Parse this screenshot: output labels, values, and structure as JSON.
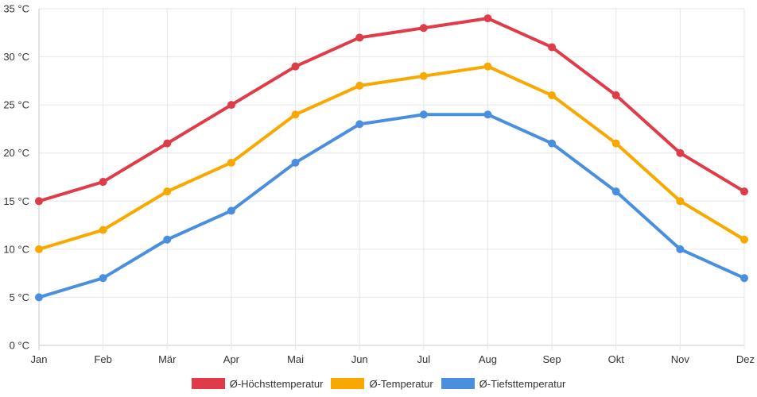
{
  "chart_data": {
    "type": "line",
    "categories": [
      "Jan",
      "Feb",
      "Mär",
      "Apr",
      "Mai",
      "Jun",
      "Jul",
      "Aug",
      "Sep",
      "Okt",
      "Nov",
      "Dez"
    ],
    "y_ticks": [
      "0 °C",
      "5 °C",
      "10 °C",
      "15 °C",
      "20 °C",
      "25 °C",
      "30 °C",
      "35 °C"
    ],
    "ylim": [
      0,
      35
    ],
    "y_step": 5,
    "grid": true,
    "legend_position": "bottom",
    "series": [
      {
        "name": "Ø-Höchsttemperatur",
        "color": "#e03b48",
        "values": [
          15,
          17,
          21,
          25,
          29,
          32,
          33,
          34,
          31,
          26,
          20,
          16
        ]
      },
      {
        "name": "Ø-Temperatur",
        "color": "#f9a800",
        "values": [
          10,
          12,
          16,
          19,
          24,
          27,
          28,
          29,
          26,
          21,
          15,
          11
        ]
      },
      {
        "name": "Ø-Tiefsttemperatur",
        "color": "#4a8fdf",
        "values": [
          5,
          7,
          11,
          14,
          19,
          23,
          24,
          24,
          21,
          16,
          10,
          7
        ]
      }
    ]
  }
}
